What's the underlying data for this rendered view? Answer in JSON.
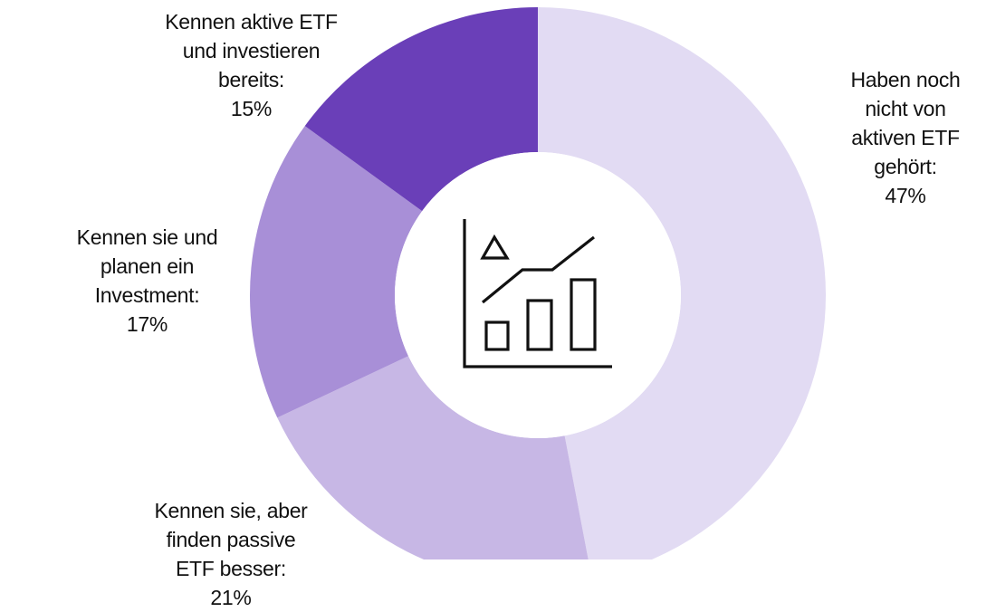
{
  "chart_data": {
    "type": "pie",
    "variant": "donut",
    "slices": [
      {
        "lines": [
          "Haben noch",
          "nicht von",
          "aktiven ETF",
          "gehört:"
        ],
        "value_label": "47%",
        "value": 47,
        "color": "#e2dbf3"
      },
      {
        "lines": [
          "Kennen sie, aber",
          "finden passive",
          "ETF besser:"
        ],
        "value_label": "21%",
        "value": 21,
        "color": "#c7b7e5"
      },
      {
        "lines": [
          "Kennen sie und",
          "planen ein",
          "Investment:"
        ],
        "value_label": "17%",
        "value": 17,
        "color": "#a88fd7"
      },
      {
        "lines": [
          "Kennen aktive ETF",
          "und investieren",
          "bereits:"
        ],
        "value_label": "15%",
        "value": 15,
        "color": "#6a3fb8"
      }
    ],
    "center_icon": "chart-growth-icon"
  }
}
